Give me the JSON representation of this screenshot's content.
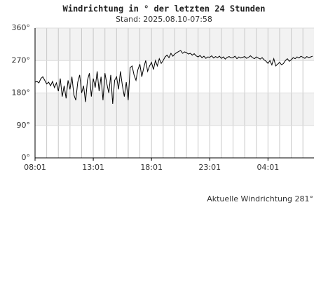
{
  "chart_data": {
    "type": "line",
    "title": "Windrichtung in ° der letzten 24 Stunden",
    "subtitle": "Stand: 2025.08.10-07:58",
    "annotation": "Aktuelle Windrichtung 281°",
    "x": [
      "08:01",
      "08:11",
      "08:21",
      "08:31",
      "08:41",
      "08:51",
      "09:01",
      "09:11",
      "09:21",
      "09:31",
      "09:41",
      "09:51",
      "10:01",
      "10:11",
      "10:21",
      "10:31",
      "10:41",
      "10:51",
      "11:01",
      "11:11",
      "11:21",
      "11:31",
      "11:41",
      "11:51",
      "12:01",
      "12:11",
      "12:21",
      "12:31",
      "12:41",
      "12:51",
      "13:01",
      "13:11",
      "13:21",
      "13:31",
      "13:41",
      "13:51",
      "14:01",
      "14:11",
      "14:21",
      "14:31",
      "14:41",
      "14:51",
      "15:01",
      "15:11",
      "15:21",
      "15:31",
      "15:41",
      "15:51",
      "16:01",
      "16:11",
      "16:21",
      "16:31",
      "16:41",
      "16:51",
      "17:01",
      "17:11",
      "17:21",
      "17:31",
      "17:41",
      "17:51",
      "18:01",
      "18:11",
      "18:21",
      "18:31",
      "18:41",
      "18:51",
      "19:01",
      "19:11",
      "19:21",
      "19:31",
      "19:41",
      "19:51",
      "20:01",
      "20:11",
      "20:21",
      "20:31",
      "20:41",
      "20:51",
      "21:01",
      "21:11",
      "21:21",
      "21:31",
      "21:41",
      "21:51",
      "22:01",
      "22:11",
      "22:21",
      "22:31",
      "22:41",
      "22:51",
      "23:01",
      "23:11",
      "23:21",
      "23:31",
      "23:41",
      "23:51",
      "00:01",
      "00:11",
      "00:21",
      "00:31",
      "00:41",
      "00:51",
      "01:01",
      "01:11",
      "01:21",
      "01:31",
      "01:41",
      "01:51",
      "02:01",
      "02:11",
      "02:21",
      "02:31",
      "02:41",
      "02:51",
      "03:01",
      "03:11",
      "03:21",
      "03:31",
      "03:41",
      "03:51",
      "04:01",
      "04:11",
      "04:21",
      "04:31",
      "04:41",
      "04:51",
      "05:01",
      "05:11",
      "05:21",
      "05:31",
      "05:41",
      "05:51",
      "06:01",
      "06:11",
      "06:21",
      "06:31",
      "06:41",
      "06:51",
      "07:01",
      "07:11",
      "07:21",
      "07:31",
      "07:41",
      "07:51"
    ],
    "series": [
      {
        "color": "#000000",
        "values": [
          210,
          212,
          208,
          220,
          225,
          215,
          205,
          210,
          200,
          212,
          195,
          208,
          185,
          220,
          170,
          200,
          165,
          215,
          190,
          225,
          175,
          160,
          210,
          230,
          180,
          200,
          155,
          215,
          235,
          170,
          220,
          195,
          240,
          185,
          225,
          160,
          235,
          205,
          180,
          230,
          150,
          215,
          225,
          190,
          240,
          200,
          170,
          210,
          160,
          250,
          255,
          230,
          215,
          245,
          260,
          225,
          250,
          270,
          240,
          255,
          265,
          245,
          270,
          255,
          275,
          262,
          270,
          280,
          285,
          278,
          290,
          282,
          288,
          292,
          295,
          298,
          290,
          294,
          292,
          288,
          290,
          285,
          289,
          283,
          280,
          284,
          278,
          282,
          276,
          280,
          279,
          283,
          277,
          281,
          278,
          282,
          276,
          280,
          274,
          279,
          281,
          277,
          278,
          282,
          275,
          280,
          277,
          279,
          281,
          276,
          279,
          283,
          278,
          275,
          280,
          277,
          274,
          278,
          272,
          268,
          262,
          270,
          258,
          275,
          255,
          260,
          265,
          258,
          262,
          270,
          275,
          268,
          272,
          278,
          275,
          280,
          277,
          282,
          279,
          276,
          281,
          278,
          280,
          282
        ]
      }
    ],
    "xlim": [
      "08:01",
      "07:58"
    ],
    "xticks": [
      "08:01",
      "13:01",
      "18:01",
      "23:01",
      "04:01"
    ],
    "ylim": [
      0,
      360
    ],
    "yticks": [
      {
        "value": 0,
        "label": "0°"
      },
      {
        "value": 90,
        "label": "90°"
      },
      {
        "value": 180,
        "label": "180°"
      },
      {
        "value": 270,
        "label": "270°"
      },
      {
        "value": 360,
        "label": "360°"
      }
    ],
    "grid": true,
    "bands": true
  }
}
